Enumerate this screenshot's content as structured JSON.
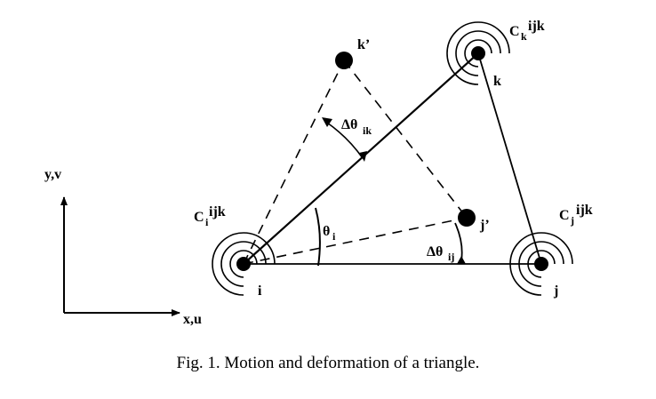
{
  "figure": {
    "caption": "Fig. 1. Motion and deformation of a triangle.",
    "axes": {
      "y_label": "y,v",
      "x_label": "x,u"
    },
    "nodes": {
      "i": {
        "label": "i",
        "spring_symbol": "C",
        "spring_sup": "ijk",
        "spring_sub": "i"
      },
      "j": {
        "label": "j",
        "spring_symbol": "C",
        "spring_sup": "ijk",
        "spring_sub": "j"
      },
      "k": {
        "label": "k",
        "spring_symbol": "C",
        "spring_sup": "ijk",
        "spring_sub": "k"
      }
    },
    "displaced_nodes": {
      "k_prime": "k’",
      "j_prime": "j’"
    },
    "angles": {
      "theta_i": {
        "symbol": "θ",
        "sub": "i"
      },
      "delta_theta_ik": {
        "symbol": "Δθ",
        "sub": "ik"
      },
      "delta_theta_ij": {
        "symbol": "Δθ",
        "sub": "ij"
      }
    },
    "colors": {
      "ink": "#000000",
      "background": "#ffffff"
    }
  }
}
